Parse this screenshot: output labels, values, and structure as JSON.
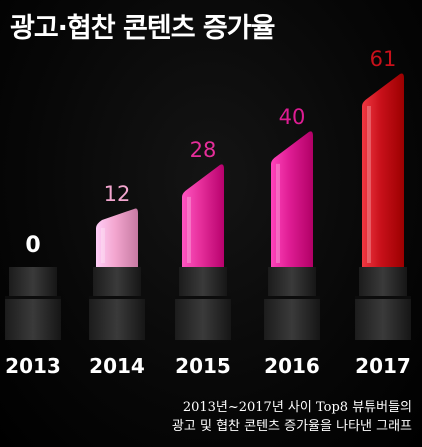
{
  "title": "광고·협찬 콘텐츠 증가율",
  "caption": {
    "line1": "2013년~2017년 사이 Top8 뷰튜버들의",
    "line2": "광고 및 협찬 콘텐츠 증가율을 나타낸 그래프"
  },
  "chart_data": {
    "type": "bar",
    "title": "광고·협찬 콘텐츠 증가율",
    "categories": [
      "2013",
      "2014",
      "2015",
      "2016",
      "2017"
    ],
    "values": [
      0,
      12,
      28,
      40,
      61
    ],
    "value_labels": [
      "0",
      "12",
      "28",
      "40",
      "61"
    ],
    "ylim": [
      0,
      61
    ],
    "grid": false,
    "legend": "none"
  },
  "colors": {
    "background": "#000000",
    "tube": "#2a2a2a",
    "value_label_0": "#ffffff",
    "bars": [
      "#2a2a2a",
      "#f3a6cf",
      "#e52e9a",
      "#de1c93",
      "#c8101a"
    ],
    "value_labels": [
      "#ffffff",
      "#f3a6cf",
      "#e52e9a",
      "#de1c93",
      "#c8101a"
    ],
    "year_labels": "#ffffff"
  },
  "icons": [
    "lipstick-bar-icon"
  ]
}
